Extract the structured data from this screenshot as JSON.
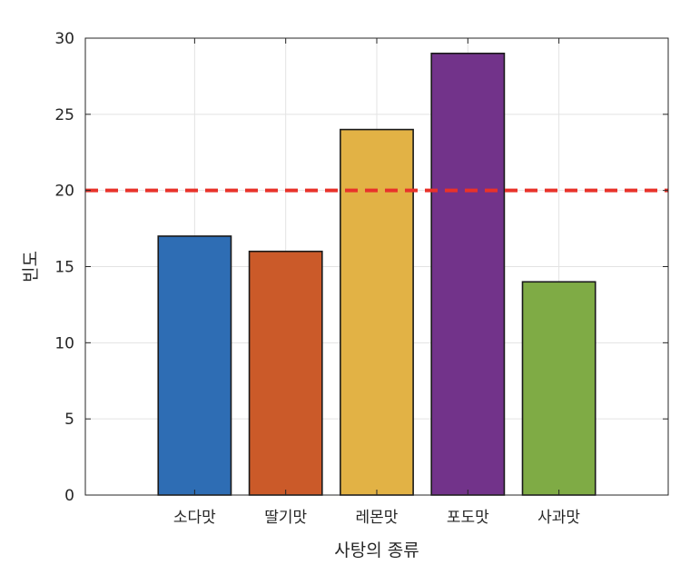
{
  "chart_data": {
    "type": "bar",
    "categories": [
      "소다맛",
      "딸기맛",
      "레몬맛",
      "포도맛",
      "사과맛"
    ],
    "values": [
      17,
      16,
      24,
      29,
      14
    ],
    "colors": [
      "#2e6db4",
      "#cb5a29",
      "#e2b245",
      "#72338a",
      "#7fab45"
    ],
    "title": "",
    "xlabel": "사탕의 종류",
    "ylabel": "빈도",
    "ylim": [
      0,
      30
    ],
    "yticks": [
      0,
      5,
      10,
      15,
      20,
      25,
      30
    ],
    "grid": true,
    "reference_line": {
      "y": 20,
      "color": "#e8322a",
      "style": "dashed"
    }
  }
}
